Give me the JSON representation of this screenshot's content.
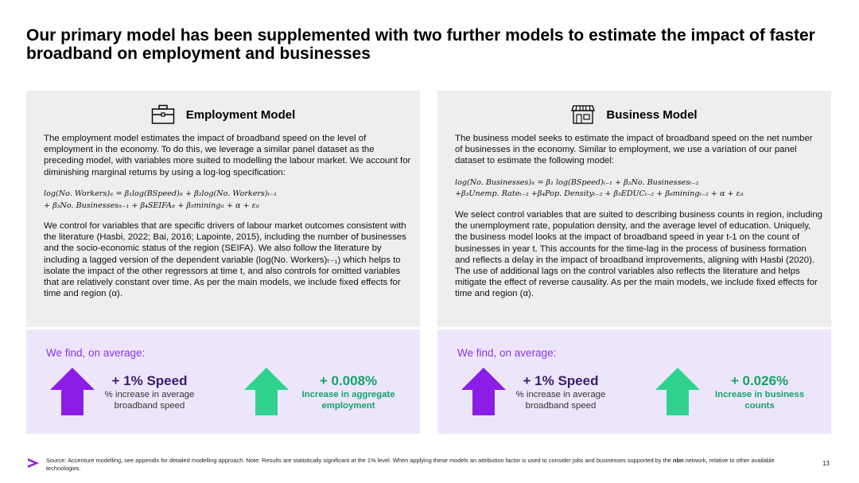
{
  "title": "Our primary model has been supplemented with two further models to estimate the impact of faster broadband on employment and businesses",
  "employment": {
    "heading": "Employment Model",
    "icon": "briefcase-icon",
    "intro": "The employment model estimates the impact of broadband speed on the level of employment in the economy. To do this, we leverage a similar panel dataset as the preceding model, with variables more suited to modelling the labour market. We account for diminishing marginal returns by using a log-log specification:",
    "formula_line1": "log(No. Workers)ᵢₜ = β₁log(BSpeed)ᵢₜ + β₂log(No. Workers)ₜ₋₁",
    "formula_line2": "+ β₃No. Businessesᵢₜ₋₁ + β₄SEIFAᵢₜ + β₅miningᵢₜ + α + εᵢₜ",
    "body": "We control for variables that are specific drivers of labour market outcomes consistent with the literature (Hasbi, 2022; Bai, 2016; Lapointe, 2015), including the number of businesses and the socio-economic status of the region (SEIFA). We also follow the literature by including a lagged version of the dependent variable (log(No. Workers)ₜ₋₁) which helps to isolate the impact of the other regressors at time t, and also controls for omitted variables that are relatively constant over time. As per the main models, we include fixed effects for time and region (α).",
    "find_title": "We find, on average:",
    "stat1_big": "+ 1% Speed",
    "stat1_small": "% increase in average broadband speed",
    "stat2_big": "+ 0.008%",
    "stat2_small": "Increase in aggregate employment"
  },
  "business": {
    "heading": "Business Model",
    "icon": "storefront-icon",
    "intro": "The business model seeks to estimate the impact of broadband speed on the net number of businesses in the economy. Similar to employment, we use a variation of our panel dataset to estimate the following model:",
    "formula_line1": "log(No. Businesses)ᵢₜ = β₁ log(BSpeed)ₜ₋₁ + β₂No. Businessesₜ₋₂",
    "formula_line2": "+β₃Unemp. Rateₜ₋₂ +β₄Pop. Densityₜ₋₂ + β₅EDUCₜ₋₂ + β₆miningₜ₋₂ + α + εᵢₜ",
    "body": "We select control variables that are suited to describing business counts in region, including the unemployment rate, population density, and the average level of education. Uniquely, the business model looks at the impact of broadband speed in year t-1 on the count of businesses in year t. This accounts for the time-lag in the process of business formation and reflects a delay in the impact of broadband improvements, aligning with Hasbi (2020). The use of additional lags on the control variables also reflects the literature and helps mitigate the effect of reverse causality. As per the main models, we include fixed effects for time and region (α).",
    "find_title": "We find, on average:",
    "stat1_big": "+ 1% Speed",
    "stat1_small": "% increase in average broadband speed",
    "stat2_big": "+ 0.026%",
    "stat2_small": "Increase in business counts"
  },
  "footer": {
    "source_text": "Source: Accenture modelling, see appendix for detailed modelling approach. Note: Results are statistically significant at the 1% level. When applying these models an attribution factor is used to consider jobs and businesses supported by the ",
    "source_bold": "nbn",
    "source_tail": " network, relative to other available technologies.",
    "page_number": "13"
  },
  "colors": {
    "purple_arrow": "#8a1ee6",
    "green_arrow": "#2fd38f",
    "accent_purple": "#8a35f0",
    "panel_gray": "#eeeeee",
    "find_lavender": "#ede6fb"
  }
}
